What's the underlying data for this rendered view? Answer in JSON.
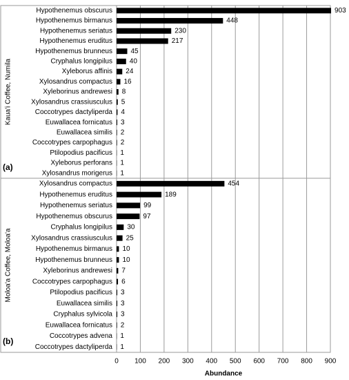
{
  "chart_data": [
    {
      "type": "bar",
      "orientation": "horizontal",
      "panel_label": "(a)",
      "ylabel": "Kaua'i Coffee, Numila",
      "categories": [
        "Hypothenemus obscurus",
        "Hypothenemus birmanus",
        "Hypothenemus seriatus",
        "Hypothenemus eruditus",
        "Hypothenemus brunneus",
        "Cryphalus longipilus",
        "Xyleborus affinis",
        "Xylosandrus compactus",
        "Xyleborinus andrewesi",
        "Xylosandrus crassiusculus",
        "Coccotrypes dactyliperda",
        "Euwallacea fornicatus",
        "Euwallacea similis",
        "Coccotrypes carpophagus",
        "Ptilopodius pacificus",
        "Xyleborus perforans",
        "Xylosandrus morigerus"
      ],
      "values": [
        903,
        448,
        230,
        217,
        45,
        40,
        24,
        16,
        8,
        5,
        4,
        3,
        2,
        2,
        1,
        1,
        1
      ],
      "color": "#000000",
      "xlim": [
        0,
        900
      ],
      "xticks": [
        0,
        100,
        200,
        300,
        400,
        500,
        600,
        700,
        800,
        900
      ],
      "grid": true
    },
    {
      "type": "bar",
      "orientation": "horizontal",
      "panel_label": "(b)",
      "ylabel": "Moloa'a Coffee, Moloa'a",
      "xlabel": "Abundance",
      "categories": [
        "Xylosandrus compactus",
        "Hypothenemus eruditus",
        "Hypothenemus seriatus",
        "Hypothenemus obscurus",
        "Cryphalus longipilus",
        "Xylosandrus crassiusculus",
        "Hypothenemus birmanus",
        "Hypothenemus brunneus",
        "Xyleborinus andrewesi",
        "Coccotrypes carpophagus",
        "Ptilopodius pacificus",
        "Euwallacea similis",
        "Cryphalus sylvicola",
        "Euwallacea fornicatus",
        "Coccotrypes advena",
        "Coccotrypes dactyliperda"
      ],
      "values": [
        454,
        189,
        99,
        97,
        30,
        25,
        10,
        10,
        7,
        6,
        3,
        3,
        3,
        2,
        1,
        1
      ],
      "color": "#000000",
      "xlim": [
        0,
        900
      ],
      "xticks": [
        0,
        100,
        200,
        300,
        400,
        500,
        600,
        700,
        800,
        900
      ],
      "grid": true
    }
  ]
}
